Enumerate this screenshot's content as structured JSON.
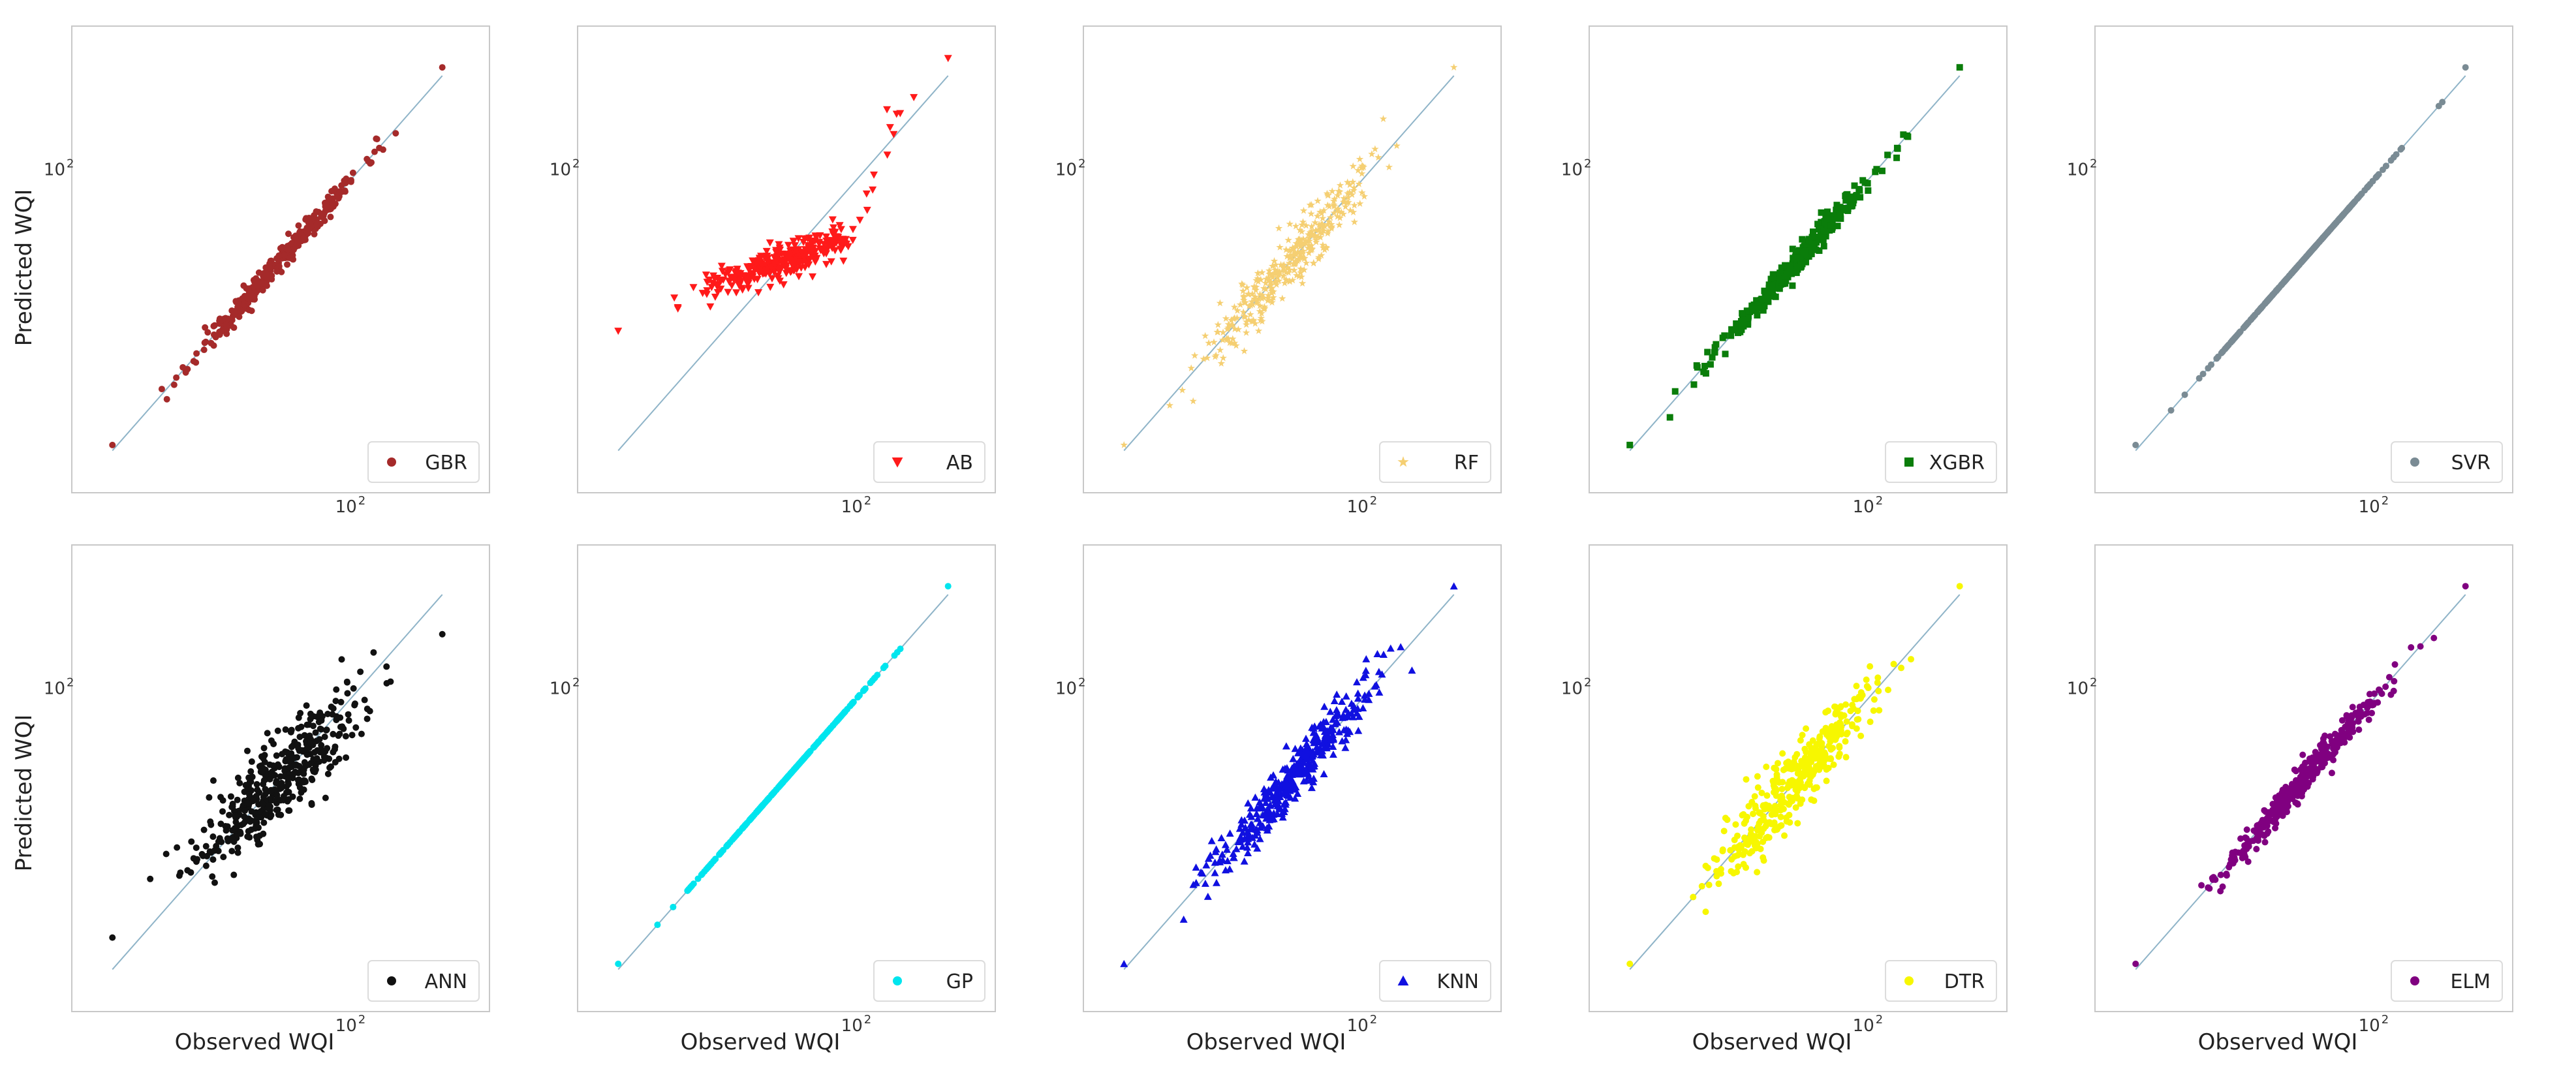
{
  "figure": {
    "row_labels": [
      "Predicted WQI",
      "Predicted WQI"
    ],
    "xlabel": "Observed WQI",
    "tick_label": "10^2",
    "tick_base": "10",
    "tick_exp": "2"
  },
  "chart_data": [
    {
      "type": "scatter",
      "series": [
        {
          "name": "GBR",
          "color": "#a52a2a",
          "marker": "circle",
          "seed": 11,
          "n": 340,
          "sigma": 0.022,
          "bias": 0
        }
      ],
      "x": [
        10,
        220
      ],
      "xscale": "log",
      "yscale": "log",
      "xlim": [
        9,
        260
      ],
      "ylim": [
        9,
        260
      ],
      "identity_line": true,
      "legend": "bottom-right",
      "row": 0,
      "col": 0
    },
    {
      "type": "scatter",
      "series": [
        {
          "name": "AB",
          "color": "#ff1a1a",
          "marker": "triangle-down",
          "seed": 12,
          "n": 340,
          "sigma": 0.03,
          "bias": "flat"
        }
      ],
      "x": [
        10,
        220
      ],
      "xscale": "log",
      "yscale": "log",
      "xlim": [
        9,
        260
      ],
      "ylim": [
        9,
        260
      ],
      "identity_line": true,
      "legend": "bottom-right",
      "row": 0,
      "col": 1
    },
    {
      "type": "scatter",
      "series": [
        {
          "name": "RF",
          "color": "#f5cf72",
          "marker": "star",
          "seed": 13,
          "n": 360,
          "sigma": 0.05,
          "bias": 0
        }
      ],
      "x": [
        10,
        220
      ],
      "xscale": "log",
      "yscale": "log",
      "xlim": [
        9,
        260
      ],
      "ylim": [
        9,
        260
      ],
      "identity_line": true,
      "legend": "bottom-right",
      "row": 0,
      "col": 2
    },
    {
      "type": "scatter",
      "series": [
        {
          "name": "XGBR",
          "color": "#0a7d0a",
          "marker": "square",
          "seed": 14,
          "n": 340,
          "sigma": 0.022,
          "bias": 0
        }
      ],
      "x": [
        10,
        220
      ],
      "xscale": "log",
      "yscale": "log",
      "xlim": [
        9,
        260
      ],
      "ylim": [
        9,
        260
      ],
      "identity_line": true,
      "legend": "bottom-right",
      "row": 0,
      "col": 3
    },
    {
      "type": "scatter",
      "series": [
        {
          "name": "SVR",
          "color": "#7a8b94",
          "marker": "circle",
          "seed": 15,
          "n": 340,
          "sigma": 0.0,
          "bias": 0
        }
      ],
      "x": [
        10,
        220
      ],
      "xscale": "log",
      "yscale": "log",
      "xlim": [
        9,
        260
      ],
      "ylim": [
        9,
        260
      ],
      "identity_line": true,
      "legend": "bottom-right",
      "row": 0,
      "col": 4
    },
    {
      "type": "scatter",
      "series": [
        {
          "name": "ANN",
          "color": "#111111",
          "marker": "circle",
          "seed": 16,
          "n": 420,
          "sigma": 0.075,
          "bias": "flat-ann"
        }
      ],
      "x": [
        10,
        220
      ],
      "xscale": "log",
      "yscale": "log",
      "xlim": [
        9,
        260
      ],
      "ylim": [
        9,
        260
      ],
      "identity_line": true,
      "legend": "bottom-right",
      "row": 1,
      "col": 0
    },
    {
      "type": "scatter",
      "series": [
        {
          "name": "GP",
          "color": "#00e5ee",
          "marker": "circle",
          "seed": 17,
          "n": 340,
          "sigma": 0.0,
          "bias": 0
        }
      ],
      "x": [
        10,
        220
      ],
      "xscale": "log",
      "yscale": "log",
      "xlim": [
        9,
        260
      ],
      "ylim": [
        9,
        260
      ],
      "identity_line": true,
      "legend": "bottom-right",
      "row": 1,
      "col": 1
    },
    {
      "type": "scatter",
      "series": [
        {
          "name": "KNN",
          "color": "#1010e0",
          "marker": "triangle-up",
          "seed": 18,
          "n": 380,
          "sigma": 0.05,
          "bias": 0
        }
      ],
      "x": [
        10,
        220
      ],
      "xscale": "log",
      "yscale": "log",
      "xlim": [
        9,
        260
      ],
      "ylim": [
        9,
        260
      ],
      "identity_line": true,
      "legend": "bottom-right",
      "row": 1,
      "col": 2
    },
    {
      "type": "scatter",
      "series": [
        {
          "name": "DTR",
          "color": "#f7f700",
          "marker": "circle",
          "seed": 19,
          "n": 380,
          "sigma": 0.065,
          "bias": 0
        }
      ],
      "x": [
        10,
        220
      ],
      "xscale": "log",
      "yscale": "log",
      "xlim": [
        9,
        260
      ],
      "ylim": [
        9,
        260
      ],
      "identity_line": true,
      "legend": "bottom-right",
      "row": 1,
      "col": 3
    },
    {
      "type": "scatter",
      "series": [
        {
          "name": "ELM",
          "color": "#800080",
          "marker": "circle",
          "seed": 20,
          "n": 360,
          "sigma": 0.03,
          "bias": 0
        }
      ],
      "x": [
        10,
        220
      ],
      "xscale": "log",
      "yscale": "log",
      "xlim": [
        9,
        260
      ],
      "ylim": [
        9,
        260
      ],
      "identity_line": true,
      "legend": "bottom-right",
      "row": 1,
      "col": 4
    }
  ]
}
